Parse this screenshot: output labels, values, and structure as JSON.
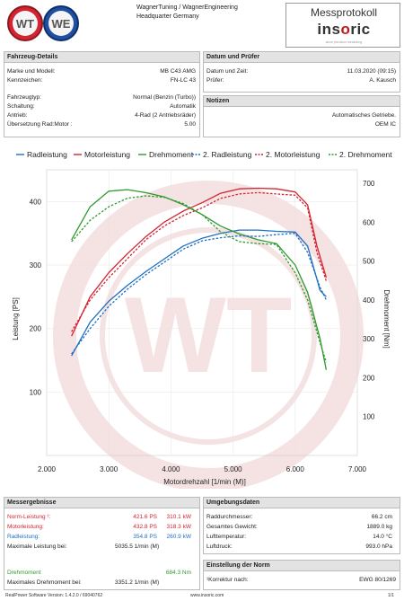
{
  "header": {
    "company_line1": "WagnerTuning / WagnerEngineering",
    "company_line2": "Headquarter Germany",
    "protocol_title": "Messprotokoll",
    "insoric_logo": "insoric",
    "insoric_sub": "since precision measuring"
  },
  "vehicle": {
    "title": "Fahrzeug-Details",
    "rows": [
      {
        "label": "Marke und Modell:",
        "value": "MB C43 AMG"
      },
      {
        "label": "Kennzeichen:",
        "value": "FN-LC 43"
      },
      {
        "label": "Fahrzeugtyp:",
        "value": "Normal (Benzin (Turbo))"
      },
      {
        "label": "Schaltung:",
        "value": "Automatik"
      },
      {
        "label": "Antrieb:",
        "value": "4-Rad (2 Antriebsräder)"
      },
      {
        "label": "Übersetzung Rad:Motor :",
        "value": "5.00"
      }
    ]
  },
  "date": {
    "title": "Datum und Prüfer",
    "rows": [
      {
        "label": "Datum und Zeit:",
        "value": "11.03.2020 (09:15)"
      },
      {
        "label": "Prüfer:",
        "value": "A. Kausch"
      }
    ]
  },
  "notes": {
    "title": "Notizen",
    "line1": "Automatisches Getriebe.",
    "line2": "OEM IC"
  },
  "legend": [
    {
      "label": "Radleistung",
      "color": "#1f6fc4",
      "dashed": false
    },
    {
      "label": "Motorleistung",
      "color": "#d42431",
      "dashed": false
    },
    {
      "label": "Drehmoment",
      "color": "#2f9a2f",
      "dashed": false
    },
    {
      "label": "2. Radleistung",
      "color": "#1f6fc4",
      "dashed": true
    },
    {
      "label": "2. Motorleistung",
      "color": "#d42431",
      "dashed": true
    },
    {
      "label": "2. Drehmoment",
      "color": "#2f9a2f",
      "dashed": true
    }
  ],
  "chart_data": {
    "type": "line",
    "xlabel": "Motordrehzahl [1/min (M)]",
    "ylabel": "Leistung [PS]",
    "y2label": "Drehmoment [Nm]",
    "xlim": [
      2000,
      7000
    ],
    "ylim": [
      0,
      450
    ],
    "y2lim": [
      0,
      735
    ],
    "xticks": [
      "2.000",
      "3.000",
      "4.000",
      "5.000",
      "6.000",
      "7.000"
    ],
    "yticks": [
      100,
      200,
      300,
      400
    ],
    "y2ticks": [
      100,
      200,
      300,
      400,
      500,
      600,
      700
    ],
    "series": [
      {
        "name": "Radleistung",
        "axis": "left",
        "color": "#1f6fc4",
        "dashed": false,
        "points": [
          [
            2400,
            157
          ],
          [
            2700,
            210
          ],
          [
            3000,
            243
          ],
          [
            3300,
            268
          ],
          [
            3600,
            290
          ],
          [
            3900,
            310
          ],
          [
            4200,
            330
          ],
          [
            4500,
            342
          ],
          [
            4800,
            350
          ],
          [
            5100,
            355
          ],
          [
            5400,
            355
          ],
          [
            5700,
            353
          ],
          [
            6000,
            352
          ],
          [
            6200,
            330
          ],
          [
            6400,
            260
          ],
          [
            6500,
            250
          ]
        ]
      },
      {
        "name": "Motorleistung",
        "axis": "left",
        "color": "#d42431",
        "dashed": false,
        "points": [
          [
            2400,
            188
          ],
          [
            2700,
            250
          ],
          [
            3000,
            288
          ],
          [
            3300,
            318
          ],
          [
            3600,
            345
          ],
          [
            3900,
            368
          ],
          [
            4200,
            385
          ],
          [
            4500,
            398
          ],
          [
            4800,
            413
          ],
          [
            5100,
            420
          ],
          [
            5400,
            421
          ],
          [
            5700,
            420
          ],
          [
            6000,
            415
          ],
          [
            6200,
            395
          ],
          [
            6350,
            330
          ],
          [
            6500,
            280
          ]
        ]
      },
      {
        "name": "Drehmoment",
        "axis": "right",
        "color": "#2f9a2f",
        "dashed": false,
        "points": [
          [
            2400,
            555
          ],
          [
            2700,
            640
          ],
          [
            3000,
            680
          ],
          [
            3300,
            684
          ],
          [
            3600,
            676
          ],
          [
            3900,
            665
          ],
          [
            4200,
            645
          ],
          [
            4500,
            620
          ],
          [
            4800,
            590
          ],
          [
            5100,
            570
          ],
          [
            5400,
            555
          ],
          [
            5700,
            545
          ],
          [
            6000,
            490
          ],
          [
            6200,
            420
          ],
          [
            6400,
            300
          ],
          [
            6500,
            220
          ]
        ]
      },
      {
        "name": "2. Radleistung",
        "axis": "left",
        "color": "#1f6fc4",
        "dashed": true,
        "points": [
          [
            2400,
            160
          ],
          [
            2700,
            200
          ],
          [
            3000,
            235
          ],
          [
            3300,
            262
          ],
          [
            3600,
            285
          ],
          [
            3900,
            305
          ],
          [
            4200,
            325
          ],
          [
            4500,
            338
          ],
          [
            4800,
            343
          ],
          [
            5100,
            346
          ],
          [
            5400,
            345
          ],
          [
            5700,
            348
          ],
          [
            6000,
            350
          ],
          [
            6200,
            320
          ],
          [
            6400,
            265
          ],
          [
            6500,
            245
          ]
        ]
      },
      {
        "name": "2. Motorleistung",
        "axis": "left",
        "color": "#d42431",
        "dashed": true,
        "points": [
          [
            2400,
            195
          ],
          [
            2700,
            245
          ],
          [
            3000,
            280
          ],
          [
            3300,
            310
          ],
          [
            3600,
            340
          ],
          [
            3900,
            362
          ],
          [
            4200,
            378
          ],
          [
            4500,
            390
          ],
          [
            4800,
            405
          ],
          [
            5100,
            412
          ],
          [
            5400,
            414
          ],
          [
            5700,
            412
          ],
          [
            6000,
            410
          ],
          [
            6200,
            390
          ],
          [
            6350,
            320
          ],
          [
            6500,
            275
          ]
        ]
      },
      {
        "name": "2. Drehmoment",
        "axis": "right",
        "color": "#2f9a2f",
        "dashed": true,
        "points": [
          [
            2400,
            550
          ],
          [
            2700,
            605
          ],
          [
            3000,
            640
          ],
          [
            3300,
            662
          ],
          [
            3600,
            668
          ],
          [
            3900,
            664
          ],
          [
            4200,
            648
          ],
          [
            4500,
            620
          ],
          [
            4800,
            575
          ],
          [
            5100,
            550
          ],
          [
            5400,
            545
          ],
          [
            5700,
            543
          ],
          [
            6000,
            470
          ],
          [
            6200,
            400
          ],
          [
            6400,
            290
          ],
          [
            6500,
            240
          ]
        ]
      }
    ]
  },
  "results": {
    "title": "Messergebnisse",
    "rows": [
      {
        "label": "Norm-Leistung ¹:",
        "v1": "421.6 PS",
        "v2": "310.1 kW",
        "color": "#d42431"
      },
      {
        "label": "Motorleistung:",
        "v1": "432.8 PS",
        "v2": "318.3 kW",
        "color": "#d42431"
      },
      {
        "label": "Radleistung:",
        "v1": "354.8 PS",
        "v2": "260.9 kW",
        "color": "#1f6fc4"
      }
    ],
    "max_power_label": "Maximale Leistung bei:",
    "max_power_value": "5035.5 1/min (M)",
    "torque_label": "Drehmoment",
    "torque_value": "684.3 Nm",
    "max_torque_label": "Maximales Drehmoment bei:",
    "max_torque_value": "3351.2 1/min (M)"
  },
  "environment": {
    "title": "Umgebungsdaten",
    "rows": [
      {
        "label": "Raddurchmesser:",
        "value": "66.2 cm"
      },
      {
        "label": "Gesamtes Gewicht:",
        "value": "1889.0 kg"
      },
      {
        "label": "Lufttemperatur:",
        "value": "14.0 °C"
      },
      {
        "label": "Luftdruck:",
        "value": "993.0 hPa"
      }
    ]
  },
  "norm": {
    "title": "Einstellung der Norm",
    "label": "¹Korrektur nach:",
    "value": "EWG 80/1269"
  },
  "footer": {
    "software": "RealPower Software Version: 1.4.2.0 / 69040762",
    "url": "www.insoric.com",
    "page": "1/1"
  }
}
